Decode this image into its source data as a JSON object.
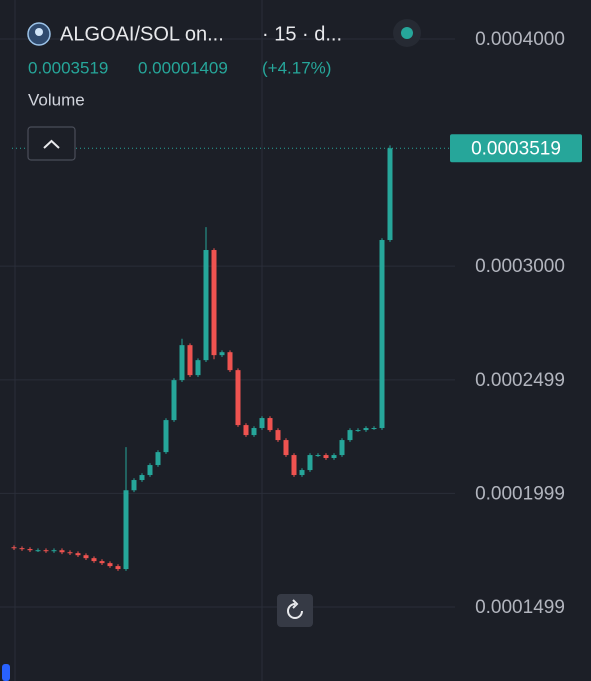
{
  "chart_data": {
    "type": "candlestick",
    "title": "ALGOAI/SOL on...",
    "subtitle": "· 15 · d...",
    "last_price": 0.0003519,
    "change": 1.409e-05,
    "change_percent_label": "(+4.17%)",
    "volume_label": "Volume",
    "up_color": "#26a69a",
    "down_color": "#ef5350",
    "grid": true,
    "ylim": [
      0.0001173,
      0.0004172
    ],
    "yticks": [
      {
        "value": 0.0004,
        "label": "0.0004000"
      },
      {
        "value": 0.0003,
        "label": "0.0003000"
      },
      0.0002499,
      0.0001999,
      0.0001499
    ],
    "open": [
      0.0001762,
      0.0001758,
      0.0001754,
      0.0001749,
      0.0001749,
      0.0001745,
      0.0001749,
      0.000174,
      0.0001736,
      0.0001727,
      0.0001714,
      0.0001701,
      0.0001692,
      0.0001679,
      0.0001666,
      0.0002013,
      0.0002058,
      0.000208,
      0.0002124,
      0.0002181,
      0.0002322,
      0.0002498,
      0.0002652,
      0.000252,
      0.0002586,
      0.0003071,
      0.0002608,
      0.0002621,
      0.0002542,
      0.00023,
      0.0002256,
      0.0002287,
      0.0002331,
      0.0002278,
      0.0002234,
      0.0002168,
      0.000208,
      0.0002102,
      0.0002168,
      0.0002168,
      0.0002155,
      0.0002168,
      0.0002234,
      0.0002278,
      0.0002278,
      0.0002287,
      0.0002287,
      0.0003115
    ],
    "high": [
      0.000177,
      0.0001766,
      0.0001762,
      0.0001757,
      0.0001757,
      0.0001757,
      0.0001757,
      0.0001748,
      0.0001744,
      0.0001735,
      0.0001722,
      0.0001709,
      0.00017,
      0.0001687,
      0.0002203,
      0.0002066,
      0.0002088,
      0.0002132,
      0.0002189,
      0.000233,
      0.0002506,
      0.000268,
      0.000266,
      0.0002594,
      0.0003172,
      0.0003079,
      0.0002629,
      0.0002629,
      0.000255,
      0.0002308,
      0.0002295,
      0.0002339,
      0.0002339,
      0.0002286,
      0.0002242,
      0.0002176,
      0.000211,
      0.0002176,
      0.0002176,
      0.0002176,
      0.0002176,
      0.0002242,
      0.0002286,
      0.0002286,
      0.0002295,
      0.0002295,
      0.0003123,
      0.0003532
    ],
    "low": [
      0.000175,
      0.0001746,
      0.0001741,
      0.0001741,
      0.0001737,
      0.0001737,
      0.0001732,
      0.0001728,
      0.0001719,
      0.0001706,
      0.0001693,
      0.0001684,
      0.0001671,
      0.0001658,
      0.0001658,
      0.0002005,
      0.000205,
      0.0002072,
      0.0002116,
      0.0002173,
      0.0002314,
      0.000249,
      0.0002512,
      0.0002512,
      0.0002578,
      0.000259,
      0.00026,
      0.0002534,
      0.0002292,
      0.0002248,
      0.0002248,
      0.0002279,
      0.000227,
      0.0002226,
      0.000216,
      0.0002072,
      0.0002072,
      0.0002094,
      0.000216,
      0.0002147,
      0.0002147,
      0.000216,
      0.0002226,
      0.000227,
      0.000227,
      0.0002279,
      0.0002279,
      0.0003107
    ],
    "close": [
      0.0001758,
      0.0001754,
      0.0001749,
      0.0001749,
      0.0001745,
      0.0001749,
      0.000174,
      0.0001736,
      0.0001727,
      0.0001714,
      0.0001701,
      0.0001692,
      0.0001679,
      0.0001666,
      0.0002013,
      0.0002058,
      0.000208,
      0.0002124,
      0.0002181,
      0.0002322,
      0.0002498,
      0.0002652,
      0.000252,
      0.0002586,
      0.0003071,
      0.0002608,
      0.0002621,
      0.0002542,
      0.00023,
      0.0002256,
      0.0002287,
      0.0002331,
      0.0002278,
      0.0002234,
      0.0002168,
      0.000208,
      0.0002102,
      0.0002168,
      0.0002168,
      0.0002155,
      0.0002168,
      0.0002234,
      0.0002278,
      0.0002278,
      0.0002287,
      0.0002287,
      0.0003115,
      0.0003519
    ]
  }
}
